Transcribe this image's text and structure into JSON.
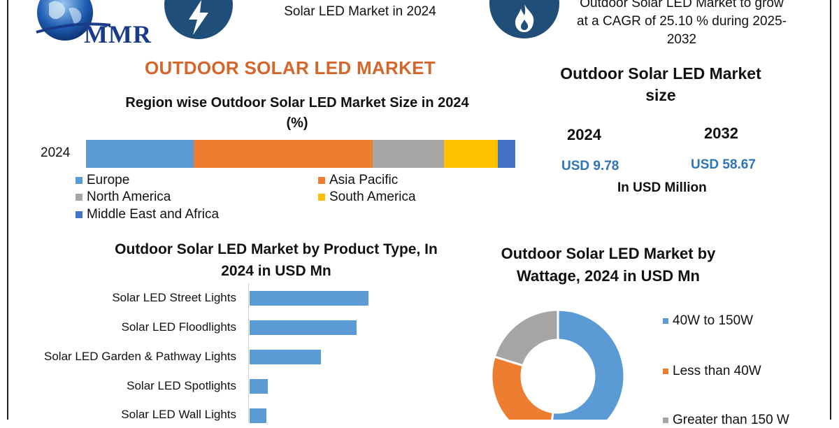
{
  "header": {
    "logo_text": "MMR",
    "left_text": "Solar LED Market in 2024",
    "right_text_lines": [
      "Outdoor Solar LED Market to grow",
      "at a CAGR of 25.10 % during 2025-",
      "2032"
    ]
  },
  "main_title": "OUTDOOR SOLAR LED MARKET",
  "market_size": {
    "title_lines": [
      "Outdoor Solar LED Market",
      "size"
    ],
    "year_a": "2024",
    "year_b": "2032",
    "value_a": "USD 9.78",
    "value_b": "USD 58.67",
    "unit": "In USD Million"
  },
  "colors": {
    "europe": "#5b9bd5",
    "asia_pacific": "#ed7d31",
    "north_america": "#a5a5a5",
    "south_america": "#ffc000",
    "mea": "#4472c4",
    "product_bar": "#5b9bd5",
    "title_orange": "#d4662a",
    "value_blue": "#2e75b6",
    "badge": "#1f4e79"
  },
  "icons": [
    "globe-logo-icon",
    "lightning-icon",
    "flame-icon"
  ],
  "chart_data": [
    {
      "type": "bar",
      "orientation": "horizontal-stacked",
      "title_lines": [
        "Region wise Outdoor Solar LED Market Size in 2024",
        "(%)"
      ],
      "categories": [
        "2024"
      ],
      "series": [
        {
          "name": "Europe",
          "values": [
            25
          ]
        },
        {
          "name": "Asia Pacific",
          "values": [
            41.5
          ]
        },
        {
          "name": "North America",
          "values": [
            16.5
          ]
        },
        {
          "name": "South America",
          "values": [
            12.5
          ]
        },
        {
          "name": "Middle East and Africa",
          "values": [
            4
          ]
        }
      ]
    },
    {
      "type": "bar",
      "orientation": "horizontal",
      "title_lines": [
        "Outdoor Solar LED Market by Product Type, In",
        "2024 in USD Mn"
      ],
      "categories": [
        "Solar LED Street Lights",
        "Solar LED Floodlights",
        "Solar LED Garden & Pathway Lights",
        "Solar LED Spotlights",
        "Solar LED Wall Lights"
      ],
      "values": [
        3.5,
        3.15,
        2.1,
        0.53,
        0.5
      ]
    },
    {
      "type": "pie",
      "style": "donut",
      "title_lines": [
        "Outdoor Solar LED Market by",
        "Wattage, 2024 in USD Mn"
      ],
      "categories": [
        "40W to 150W",
        "Less than 40W",
        "Greater than 150 W"
      ],
      "values": [
        5.1,
        2.7,
        1.98
      ],
      "legend_placement": "right"
    }
  ]
}
